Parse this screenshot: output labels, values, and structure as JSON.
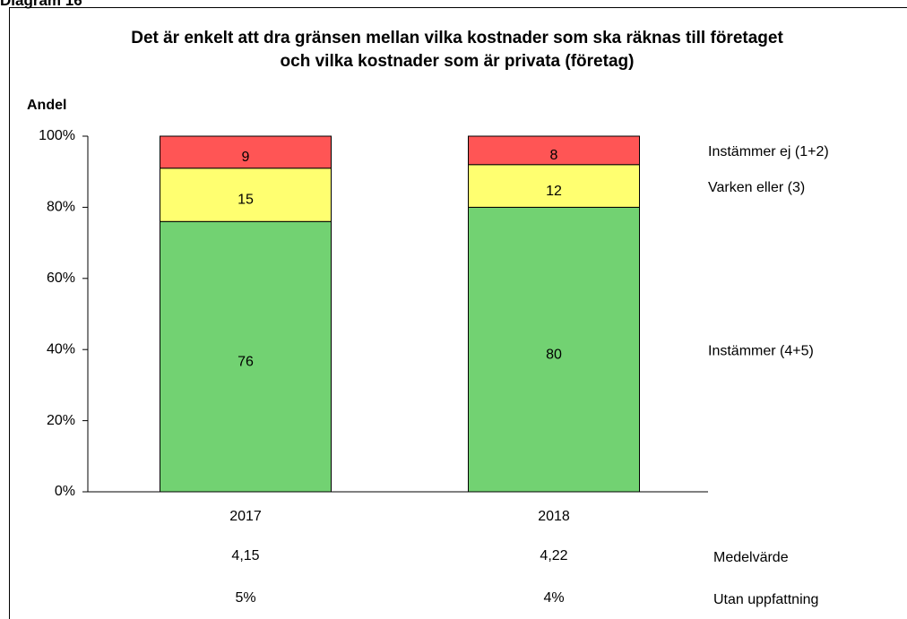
{
  "header": "Diagram 16",
  "chart_data": {
    "type": "stacked_bar",
    "title": "Det är enkelt att dra gränsen mellan vilka kostnader som ska räknas till företaget och vilka kostnader som är privata (företag)",
    "y_label": "Andel",
    "categories": [
      "2017",
      "2018"
    ],
    "series": [
      {
        "name": "Instämmer (4+5)",
        "color": "#72d272",
        "values": [
          76,
          80
        ]
      },
      {
        "name": "Varken eller (3)",
        "color": "#ffff70",
        "values": [
          15,
          12
        ]
      },
      {
        "name": "Instämmer ej (1+2)",
        "color": "#ff5555",
        "values": [
          9,
          8
        ]
      }
    ],
    "ylim": [
      0,
      100
    ],
    "yticks": [
      {
        "value": 0,
        "label": "0%"
      },
      {
        "value": 20,
        "label": "20%"
      },
      {
        "value": 40,
        "label": "40%"
      },
      {
        "value": 60,
        "label": "60%"
      },
      {
        "value": 80,
        "label": "80%"
      },
      {
        "value": 100,
        "label": "100%"
      }
    ],
    "extra_rows": [
      {
        "label": "Medelvärde",
        "values": [
          "4,15",
          "4,22"
        ]
      },
      {
        "label": "Utan uppfattning",
        "values": [
          "5%",
          "4%"
        ]
      }
    ]
  }
}
